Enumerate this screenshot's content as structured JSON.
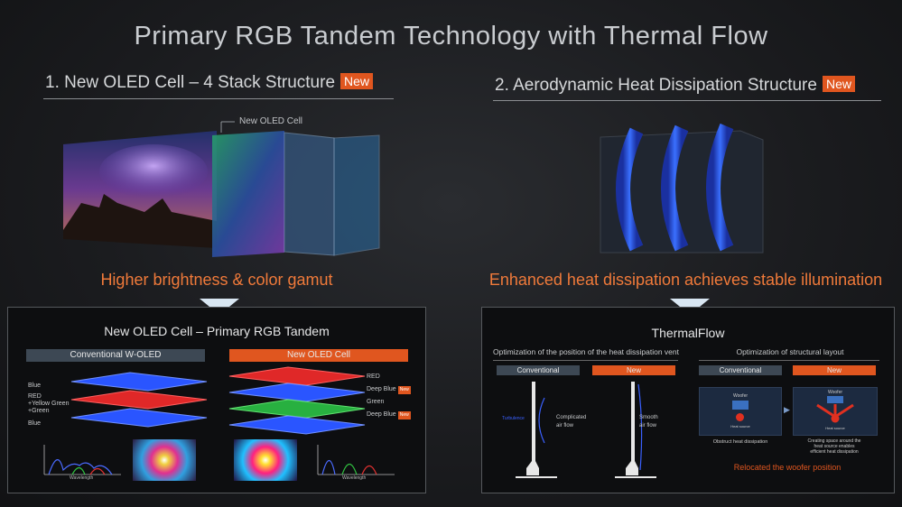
{
  "title": "Primary RGB Tandem Technology with Thermal Flow",
  "left": {
    "heading": "1. New OLED Cell – 4 Stack Structure",
    "badge": "New",
    "cell_label": "New OLED Cell",
    "highlight": "Higher brightness & color gamut",
    "panel": {
      "title": "New OLED Cell – Primary RGB Tandem",
      "conventional_label": "Conventional W-OLED",
      "new_label": "New OLED Cell",
      "conv_layers": [
        "Blue",
        "RED",
        "+Yellow Green",
        "+Green",
        "Blue"
      ],
      "new_layers": [
        "RED",
        "Deep Blue",
        "Green",
        "Deep Blue"
      ],
      "new_tag": "New",
      "wavelength": "Wavelength"
    }
  },
  "right": {
    "heading": "2. Aerodynamic Heat Dissipation Structure",
    "badge": "New",
    "highlight": "Enhanced heat dissipation achieves stable illumination",
    "panel": {
      "title": "ThermalFlow",
      "vent_title": "Optimization of the position of the heat dissipation vent",
      "layout_title": "Optimization of structural layout",
      "conventional": "Conventional",
      "new": "New",
      "turbulence": "Turbulence",
      "complicated_flow": [
        "Complicated",
        "air flow"
      ],
      "smooth_flow": [
        "Smooth",
        "air flow"
      ],
      "woofer": "Woofer",
      "heat_source": "Heat source",
      "obstruct": "Obstruct heat dissipation",
      "creating_space": [
        "Creating space around the",
        "heat source enables",
        "efficient heat dissipation"
      ],
      "relocated": "Relocated the woofer position"
    }
  },
  "colors": {
    "accent": "#e0561f",
    "highlight": "#f07a3a",
    "grey_bar": "#3d4854"
  }
}
